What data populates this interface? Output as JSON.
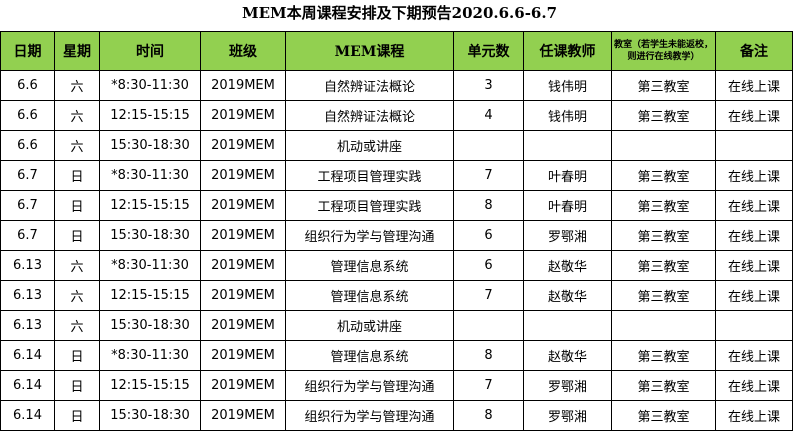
{
  "title": "MEM本周课程安排及下期预告2020.6.6-6.7",
  "headers": [
    "日期",
    "星期",
    "时间",
    "班级",
    "MEM课程",
    "单元数",
    "任课教师",
    "教室（若学生未能返校，则进行在线教学）",
    "备注"
  ],
  "rows": [
    {
      "date": "6.6",
      "weekday": "六",
      "time": "*8:30-11:30",
      "class": "2019MEM",
      "course": "自然辨证法概论",
      "units": "3",
      "teacher": "钱伟明",
      "room": "第三教室",
      "note": "在线上课"
    },
    {
      "date": "6.6",
      "weekday": "六",
      "time": "12:15-15:15",
      "class": "2019MEM",
      "course": "自然辨证法概论",
      "units": "4",
      "teacher": "钱伟明",
      "room": "第三教室",
      "note": "在线上课"
    },
    {
      "date": "6.6",
      "weekday": "六",
      "time": "15:30-18:30",
      "class": "2019MEM",
      "course": "机动或讲座",
      "units": "",
      "teacher": "",
      "room": "",
      "note": ""
    },
    {
      "date": "6.7",
      "weekday": "日",
      "time": "*8:30-11:30",
      "class": "2019MEM",
      "course": "工程项目管理实践",
      "units": "7",
      "teacher": "叶春明",
      "room": "第三教室",
      "note": "在线上课"
    },
    {
      "date": "6.7",
      "weekday": "日",
      "time": "12:15-15:15",
      "class": "2019MEM",
      "course": "工程项目管理实践",
      "units": "8",
      "teacher": "叶春明",
      "room": "第三教室",
      "note": "在线上课"
    },
    {
      "date": "6.7",
      "weekday": "日",
      "time": "15:30-18:30",
      "class": "2019MEM",
      "course": "组织行为学与管理沟通",
      "units": "6",
      "teacher": "罗鄂湘",
      "room": "第三教室",
      "note": "在线上课"
    },
    {
      "date": "6.13",
      "weekday": "六",
      "time": "*8:30-11:30",
      "class": "2019MEM",
      "course": "管理信息系统",
      "units": "6",
      "teacher": "赵敬华",
      "room": "第三教室",
      "note": "在线上课"
    },
    {
      "date": "6.13",
      "weekday": "六",
      "time": "12:15-15:15",
      "class": "2019MEM",
      "course": "管理信息系统",
      "units": "7",
      "teacher": "赵敬华",
      "room": "第三教室",
      "note": "在线上课"
    },
    {
      "date": "6.13",
      "weekday": "六",
      "time": "15:30-18:30",
      "class": "2019MEM",
      "course": "机动或讲座",
      "units": "",
      "teacher": "",
      "room": "",
      "note": ""
    },
    {
      "date": "6.14",
      "weekday": "日",
      "time": "*8:30-11:30",
      "class": "2019MEM",
      "course": "管理信息系统",
      "units": "8",
      "teacher": "赵敬华",
      "room": "第三教室",
      "note": "在线上课"
    },
    {
      "date": "6.14",
      "weekday": "日",
      "time": "12:15-15:15",
      "class": "2019MEM",
      "course": "组织行为学与管理沟通",
      "units": "7",
      "teacher": "罗鄂湘",
      "room": "第三教室",
      "note": "在线上课"
    },
    {
      "date": "6.14",
      "weekday": "日",
      "time": "15:30-18:30",
      "class": "2019MEM",
      "course": "组织行为学与管理沟通",
      "units": "8",
      "teacher": "罗鄂湘",
      "room": "第三教室",
      "note": "在线上课"
    }
  ]
}
